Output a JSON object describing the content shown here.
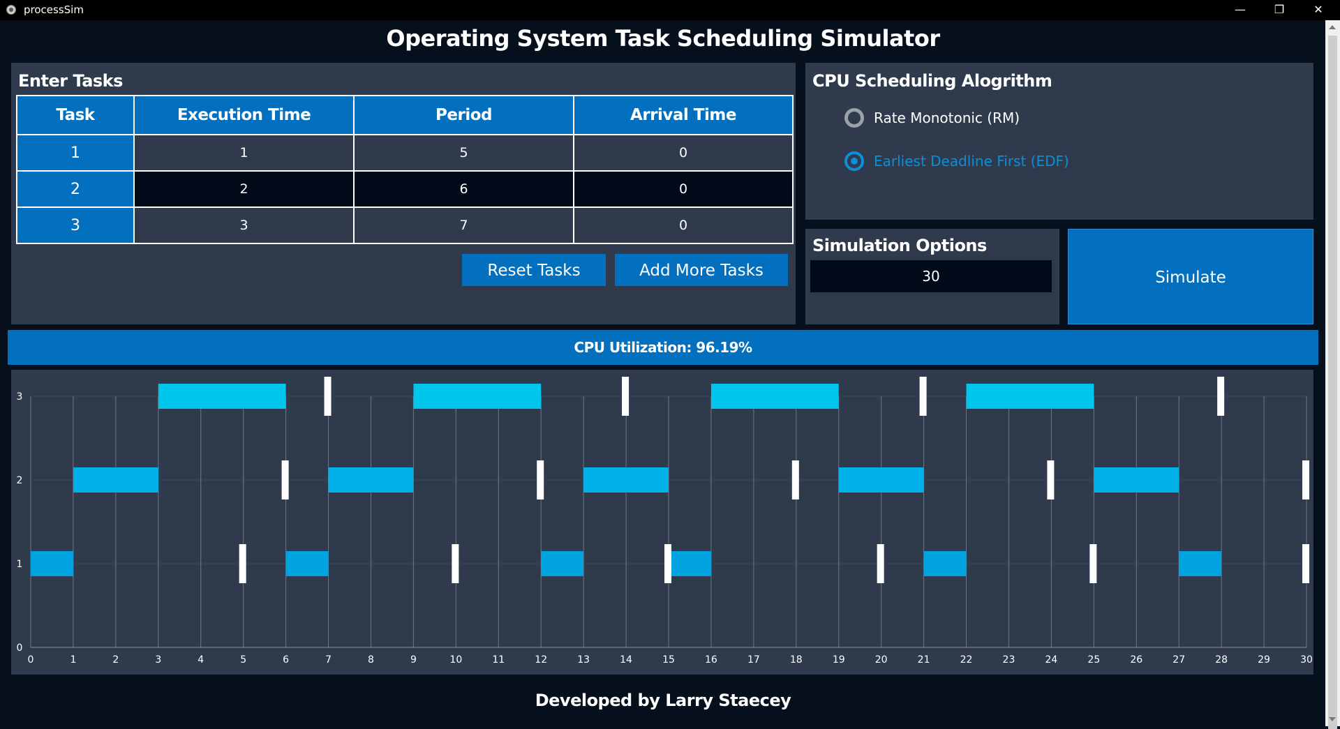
{
  "window": {
    "title": "processSim",
    "minimize_icon": "minimize-icon",
    "maximize_icon": "restore-icon",
    "close_icon": "close-icon"
  },
  "header": {
    "title": "Operating System Task Scheduling Simulator"
  },
  "tasks": {
    "title": "Enter Tasks",
    "columns": [
      "Task",
      "Execution Time",
      "Period",
      "Arrival Time"
    ],
    "rows": [
      [
        "1",
        "1",
        "5",
        "0"
      ],
      [
        "2",
        "2",
        "6",
        "0"
      ],
      [
        "3",
        "3",
        "7",
        "0"
      ]
    ],
    "reset_label": "Reset Tasks",
    "add_label": "Add More Tasks"
  },
  "scheduling": {
    "title": "CPU Scheduling Alogrithm",
    "options": [
      {
        "label": "Rate Monotonic (RM)",
        "selected": false
      },
      {
        "label": "Earliest Deadline First (EDF)",
        "selected": true
      }
    ]
  },
  "simulation": {
    "title": "Simulation Options",
    "duration_value": "30",
    "simulate_label": "Simulate"
  },
  "utilization": {
    "text": "CPU Utilization: 96.19%"
  },
  "colors": {
    "task1": "#00a3e0",
    "task2": "#00b1ea",
    "task3": "#00c6eb",
    "deadline": "#ffffff",
    "accent": "#0270be"
  },
  "chart_data": {
    "type": "gantt",
    "xlim": [
      0,
      30
    ],
    "ylim": [
      0,
      3
    ],
    "x_ticks": [
      0,
      1,
      2,
      3,
      4,
      5,
      6,
      7,
      8,
      9,
      10,
      11,
      12,
      13,
      14,
      15,
      16,
      17,
      18,
      19,
      20,
      21,
      22,
      23,
      24,
      25,
      26,
      27,
      28,
      29,
      30
    ],
    "y_ticks": [
      0,
      1,
      2,
      3
    ],
    "series": [
      {
        "task": 1,
        "executions": [
          [
            0,
            1
          ],
          [
            6,
            7
          ],
          [
            12,
            13
          ],
          [
            15,
            16
          ],
          [
            21,
            22
          ],
          [
            27,
            28
          ]
        ],
        "deadlines": [
          5,
          10,
          15,
          20,
          25,
          30
        ]
      },
      {
        "task": 2,
        "executions": [
          [
            1,
            3
          ],
          [
            7,
            9
          ],
          [
            13,
            15
          ],
          [
            19,
            21
          ],
          [
            25,
            27
          ]
        ],
        "deadlines": [
          6,
          12,
          18,
          24,
          30
        ]
      },
      {
        "task": 3,
        "executions": [
          [
            3,
            6
          ],
          [
            9,
            12
          ],
          [
            16,
            19
          ],
          [
            22,
            25
          ]
        ],
        "deadlines": [
          7,
          14,
          21,
          28
        ]
      }
    ]
  },
  "footer": {
    "text": "Developed by Larry Staecey"
  }
}
